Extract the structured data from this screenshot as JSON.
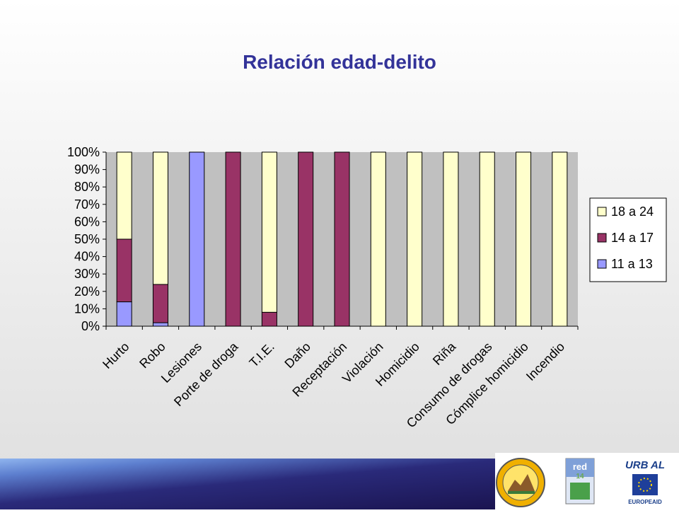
{
  "slide": {
    "title": "Relación edad-delito"
  },
  "colors": {
    "series_11_13": "#9999ff",
    "series_14_17": "#993366",
    "series_18_24": "#ffffcc",
    "plot_bg": "#c0c0c0",
    "title": "#333399"
  },
  "logos": {
    "municipal_seal": "municipal-seal-logo",
    "red": {
      "top": "red",
      "bottom": "14"
    },
    "urbal": {
      "name": "URB AL",
      "label": "EUROPEAID"
    }
  },
  "chart_data": {
    "type": "bar",
    "stacked": true,
    "stack_mode": "percent",
    "title": "",
    "xlabel": "",
    "ylabel": "",
    "ylim": [
      0,
      100
    ],
    "y_ticks": [
      "0%",
      "10%",
      "20%",
      "30%",
      "40%",
      "50%",
      "60%",
      "70%",
      "80%",
      "90%",
      "100%"
    ],
    "grid": false,
    "legend_position": "right",
    "categories": [
      "Hurto",
      "Robo",
      "Lesiones",
      "Porte de droga",
      "T.I.E.",
      "Daño",
      "Receptación",
      "Violación",
      "Homicidio",
      "Riña",
      "Consumo de drogas",
      "Cómplice homicidio",
      "Incendio"
    ],
    "series": [
      {
        "name": "11 a 13",
        "color": "#9999ff",
        "values": [
          14,
          2,
          100,
          0,
          0,
          0,
          0,
          0,
          0,
          0,
          0,
          0,
          0
        ]
      },
      {
        "name": "14 a 17",
        "color": "#993366",
        "values": [
          36,
          22,
          0,
          100,
          8,
          100,
          100,
          0,
          0,
          0,
          0,
          0,
          0
        ]
      },
      {
        "name": "18 a 24",
        "color": "#ffffcc",
        "values": [
          50,
          76,
          0,
          0,
          92,
          0,
          0,
          100,
          100,
          100,
          100,
          100,
          100
        ]
      }
    ],
    "legend_order": [
      "18 a 24",
      "14 a 17",
      "11 a 13"
    ]
  }
}
